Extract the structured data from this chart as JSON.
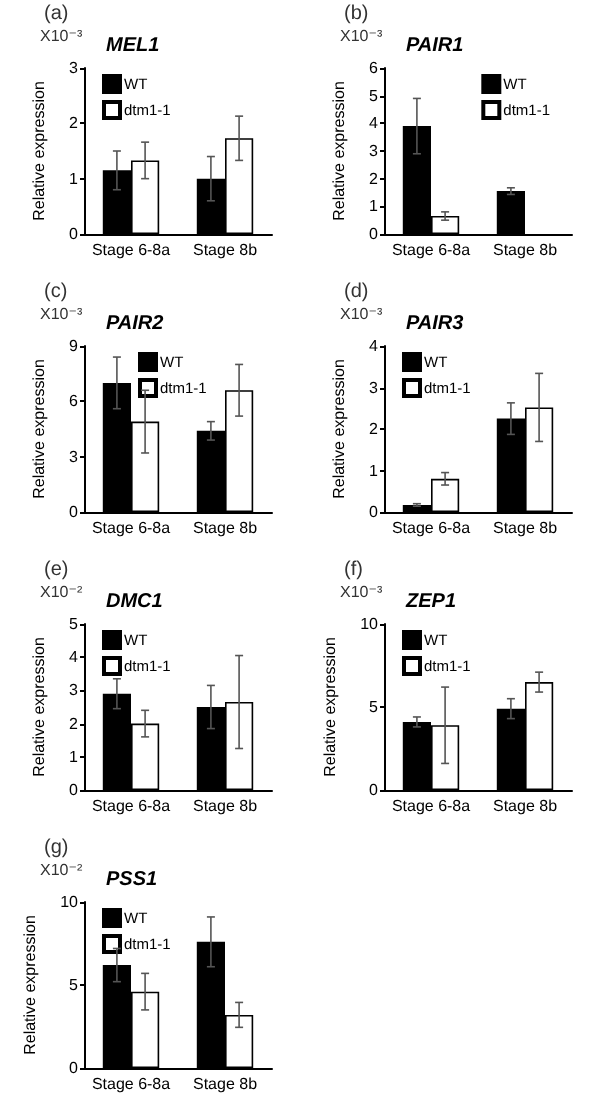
{
  "chart_data": [
    {
      "type": "bar",
      "title": "MEL1",
      "annotations": [
        "(a)",
        "X10⁻³"
      ],
      "ylabel": "Relative expression",
      "categories": [
        "Stage 6-8a",
        "Stage 8b"
      ],
      "ylim": [
        0,
        3
      ],
      "yticks": [
        0,
        1,
        2,
        3
      ],
      "grid": false,
      "legend": "top left",
      "series": [
        {
          "name": "WT",
          "color": "#000000",
          "values": [
            1.15,
            1.0
          ],
          "errors": [
            0.35,
            0.4
          ]
        },
        {
          "name": "dtm1-1",
          "color": "#ffffff",
          "values": [
            1.33,
            1.73
          ],
          "errors": [
            0.33,
            0.4
          ]
        }
      ]
    },
    {
      "type": "bar",
      "title": "PAIR1",
      "annotations": [
        "(b)",
        "X10⁻³"
      ],
      "ylabel": "Relative expression",
      "categories": [
        "Stage 6-8a",
        "Stage 8b"
      ],
      "ylim": [
        0,
        6
      ],
      "yticks": [
        0,
        1,
        2,
        3,
        4,
        5,
        6
      ],
      "grid": false,
      "legend": "top right",
      "series": [
        {
          "name": "WT",
          "color": "#000000",
          "values": [
            3.9,
            1.55
          ],
          "errors": [
            1.0,
            0.12
          ]
        },
        {
          "name": "dtm1-1",
          "color": "#ffffff",
          "values": [
            0.65,
            null
          ],
          "errors": [
            0.15,
            null
          ]
        }
      ]
    },
    {
      "type": "bar",
      "title": "PAIR2",
      "annotations": [
        "(c)",
        "X10⁻³"
      ],
      "ylabel": "Relative expression",
      "categories": [
        "Stage 6-8a",
        "Stage 8b"
      ],
      "ylim": [
        0,
        9
      ],
      "yticks": [
        0,
        3,
        6,
        9
      ],
      "grid": false,
      "legend": "top",
      "series": [
        {
          "name": "WT",
          "color": "#000000",
          "values": [
            7.0,
            4.4
          ],
          "errors": [
            1.4,
            0.5
          ]
        },
        {
          "name": "dtm1-1",
          "color": "#ffffff",
          "values": [
            4.9,
            6.6
          ],
          "errors": [
            1.7,
            1.4
          ]
        }
      ]
    },
    {
      "type": "bar",
      "title": "PAIR3",
      "annotations": [
        "(d)",
        "X10⁻³"
      ],
      "ylabel": "Relative expression",
      "categories": [
        "Stage 6-8a",
        "Stage 8b"
      ],
      "ylim": [
        0,
        4
      ],
      "yticks": [
        0,
        1,
        2,
        3,
        4
      ],
      "grid": false,
      "legend": "top left",
      "series": [
        {
          "name": "WT",
          "color": "#000000",
          "values": [
            0.17,
            2.25
          ],
          "errors": [
            0.03,
            0.38
          ]
        },
        {
          "name": "dtm1-1",
          "color": "#ffffff",
          "values": [
            0.8,
            2.52
          ],
          "errors": [
            0.15,
            0.82
          ]
        }
      ]
    },
    {
      "type": "bar",
      "title": "DMC1",
      "annotations": [
        "(e)",
        "X10⁻²"
      ],
      "ylabel": "Relative expression",
      "categories": [
        "Stage 6-8a",
        "Stage 8b"
      ],
      "ylim": [
        0,
        5
      ],
      "yticks": [
        0,
        1,
        2,
        3,
        4,
        5
      ],
      "grid": false,
      "legend": "top left",
      "series": [
        {
          "name": "WT",
          "color": "#000000",
          "values": [
            2.9,
            2.5
          ],
          "errors": [
            0.45,
            0.65
          ]
        },
        {
          "name": "dtm1-1",
          "color": "#ffffff",
          "values": [
            2.0,
            2.65
          ],
          "errors": [
            0.4,
            1.4
          ]
        }
      ]
    },
    {
      "type": "bar",
      "title": "ZEP1",
      "annotations": [
        "(f)",
        "X10⁻³"
      ],
      "ylabel": "Relative expression",
      "categories": [
        "Stage 6-8a",
        "Stage 8b"
      ],
      "ylim": [
        0,
        10
      ],
      "yticks": [
        0,
        5,
        10
      ],
      "grid": false,
      "legend": "top left",
      "series": [
        {
          "name": "WT",
          "color": "#000000",
          "values": [
            4.1,
            4.9
          ],
          "errors": [
            0.3,
            0.6
          ]
        },
        {
          "name": "dtm1-1",
          "color": "#ffffff",
          "values": [
            3.9,
            6.5
          ],
          "errors": [
            2.3,
            0.6
          ]
        }
      ]
    },
    {
      "type": "bar",
      "title": "PSS1",
      "annotations": [
        "(g)",
        "X10⁻²"
      ],
      "ylabel": "Relative expression",
      "categories": [
        "Stage 6-8a",
        "Stage 8b"
      ],
      "ylim": [
        0,
        10
      ],
      "yticks": [
        0,
        5,
        10
      ],
      "grid": false,
      "legend": "top left",
      "series": [
        {
          "name": "WT",
          "color": "#000000",
          "values": [
            6.2,
            7.6
          ],
          "errors": [
            1.0,
            1.5
          ]
        },
        {
          "name": "dtm1-1",
          "color": "#ffffff",
          "values": [
            4.6,
            3.2
          ],
          "errors": [
            1.1,
            0.75
          ]
        }
      ]
    }
  ]
}
